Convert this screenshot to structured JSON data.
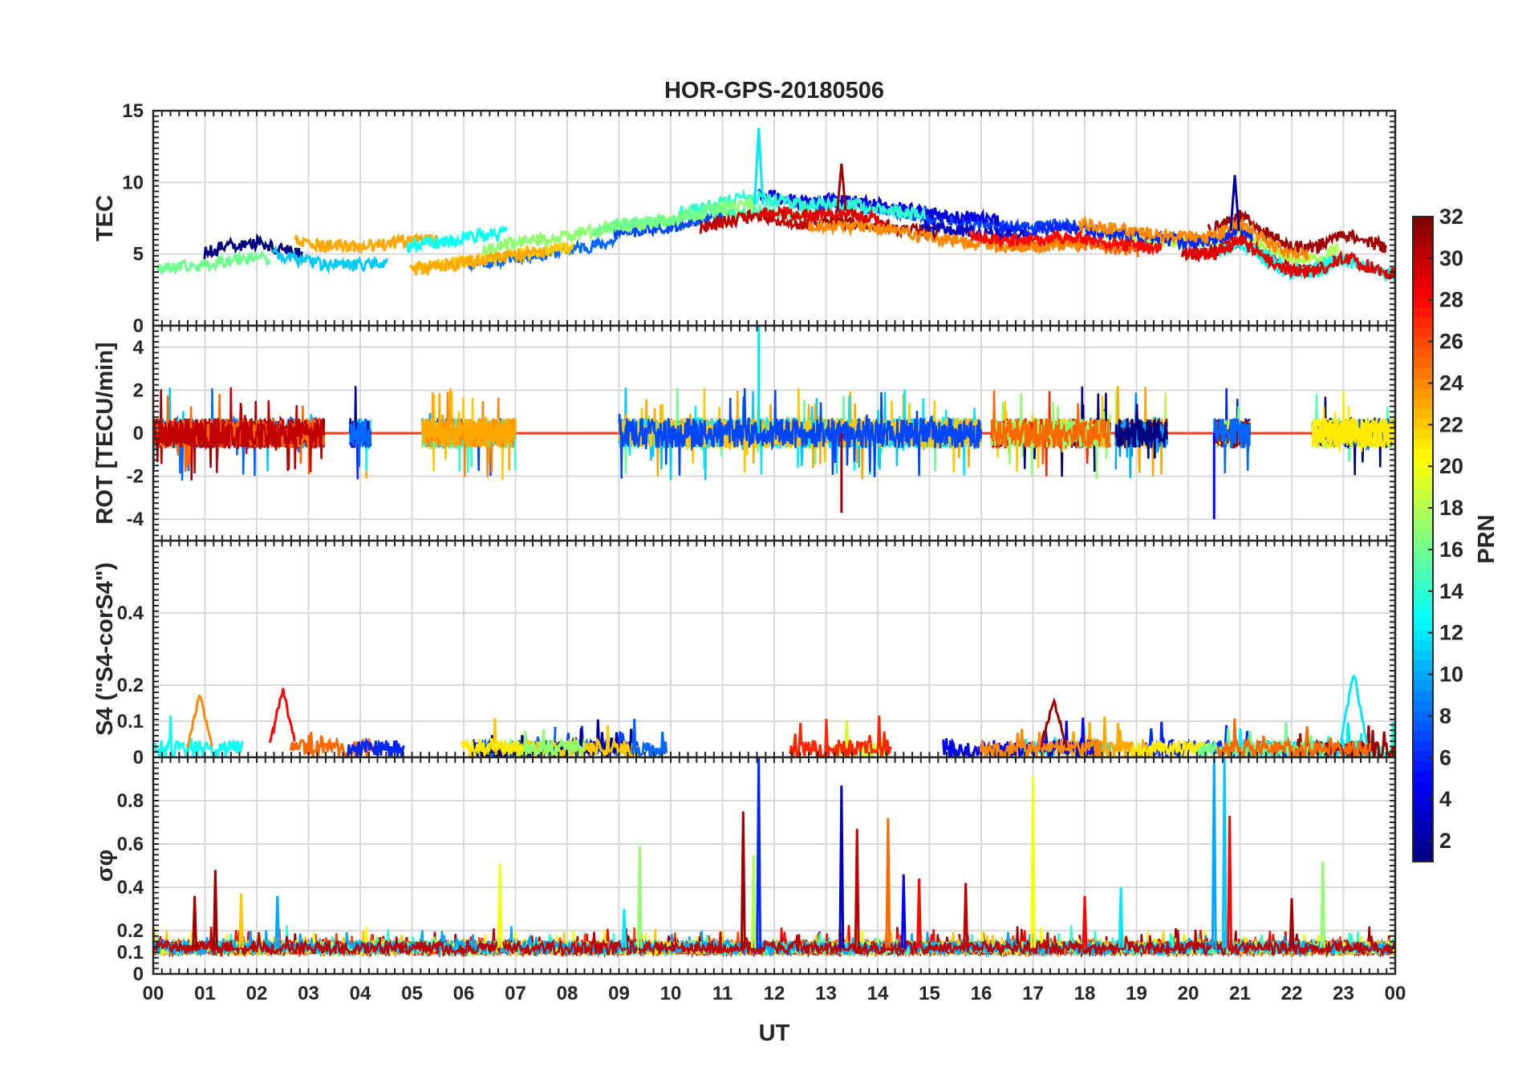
{
  "chart_data": {
    "type": "line",
    "title": "HOR-GPS-20180506",
    "xlabel": "UT",
    "x_ticks": [
      "00",
      "01",
      "02",
      "03",
      "04",
      "05",
      "06",
      "07",
      "08",
      "09",
      "10",
      "11",
      "12",
      "13",
      "14",
      "15",
      "16",
      "17",
      "18",
      "19",
      "20",
      "21",
      "22",
      "23",
      "00"
    ],
    "xlim_hours": [
      0,
      24
    ],
    "grid": true,
    "colorbar": {
      "label": "PRN",
      "range": [
        1,
        32
      ],
      "ticks": [
        "2",
        "4",
        "6",
        "8",
        "10",
        "12",
        "14",
        "16",
        "18",
        "20",
        "22",
        "24",
        "26",
        "28",
        "30",
        "32"
      ],
      "tick_values": [
        2,
        4,
        6,
        8,
        10,
        12,
        14,
        16,
        18,
        20,
        22,
        24,
        26,
        28,
        30,
        32
      ],
      "colormap": [
        "#00007f",
        "#0000ff",
        "#007fff",
        "#00ffff",
        "#7fff7f",
        "#ffff00",
        "#ff7f00",
        "#ff0000",
        "#7f0000"
      ]
    },
    "panels": [
      {
        "id": "tec",
        "ylabel": "TEC",
        "ylim": [
          0,
          15
        ],
        "yticks": [
          "0",
          "5",
          "10",
          "15"
        ],
        "ytick_values": [
          0,
          5,
          10,
          15
        ],
        "envelope": {
          "x": [
            0,
            0.5,
            1,
            1.5,
            2,
            2.5,
            3,
            3.5,
            4,
            4.5,
            5,
            5.5,
            6,
            6.5,
            7,
            7.5,
            8,
            8.5,
            9,
            9.5,
            10,
            10.5,
            11,
            11.5,
            12,
            12.5,
            13,
            13.5,
            14,
            14.5,
            15,
            15.5,
            16,
            16.5,
            17,
            17.5,
            18,
            18.5,
            19,
            19.5,
            20,
            20.5,
            21,
            21.5,
            22,
            22.5,
            23,
            23.5,
            24
          ],
          "y": [
            4.6,
            4.7,
            4.9,
            5.3,
            5.5,
            5.0,
            4.6,
            4.4,
            4.4,
            4.5,
            4.8,
            5.0,
            5.3,
            5.5,
            5.8,
            6.0,
            6.3,
            6.6,
            7.0,
            7.2,
            7.3,
            7.8,
            8.2,
            8.5,
            8.3,
            8.0,
            8.1,
            8.0,
            7.8,
            7.5,
            7.2,
            7.0,
            6.8,
            6.6,
            6.6,
            6.8,
            6.7,
            6.4,
            6.2,
            6.0,
            5.8,
            5.9,
            6.8,
            5.6,
            4.6,
            4.7,
            5.6,
            5.0,
            4.4
          ]
        },
        "peaks": [
          {
            "ut": 11.7,
            "value": 13.8,
            "prn": 12
          },
          {
            "ut": 13.3,
            "value": 11.3,
            "prn": 31
          },
          {
            "ut": 20.9,
            "value": 10.5,
            "prn": 2
          }
        ]
      },
      {
        "id": "rot",
        "ylabel": "ROT [TECU/min]",
        "ylim": [
          -5,
          5
        ],
        "yticks": [
          "-4",
          "-2",
          "0",
          "2",
          "4"
        ],
        "ytick_values": [
          -4,
          -2,
          0,
          2,
          4
        ],
        "activity_ut": [
          [
            0,
            3.3
          ],
          [
            3.8,
            4.2
          ],
          [
            5.2,
            7.0
          ],
          [
            9.0,
            16.0
          ],
          [
            16.2,
            18.5
          ],
          [
            18.6,
            19.6
          ],
          [
            20.5,
            21.2
          ],
          [
            22.4,
            24
          ]
        ],
        "peaks": [
          {
            "ut": 11.7,
            "value": 5.0,
            "prn": 12
          },
          {
            "ut": 13.3,
            "value": -3.7,
            "prn": 31
          },
          {
            "ut": 20.5,
            "value": -4.0,
            "prn": 5
          }
        ]
      },
      {
        "id": "s4",
        "ylabel": "S4 (\"S4-corS4\")",
        "ylim": [
          0,
          0.6
        ],
        "yticks": [
          "0",
          "0.1",
          "0.2",
          "0.4"
        ],
        "ytick_values": [
          0,
          0.1,
          0.2,
          0.4
        ],
        "peaks": [
          {
            "ut": 0.9,
            "value": 0.17,
            "prn": 24
          },
          {
            "ut": 2.5,
            "value": 0.19,
            "prn": 28
          },
          {
            "ut": 23.2,
            "value": 0.24,
            "prn": 12
          },
          {
            "ut": 17.4,
            "value": 0.16,
            "prn": 31
          }
        ]
      },
      {
        "id": "sigma_phi",
        "ylabel": "σφ",
        "ylim": [
          0,
          1
        ],
        "yticks": [
          "0",
          "0.1",
          "0.2",
          "0.4",
          "0.6",
          "0.8"
        ],
        "ytick_values": [
          0,
          0.1,
          0.2,
          0.4,
          0.6,
          0.8
        ],
        "spikes": [
          {
            "ut": 0.8,
            "value": 0.36,
            "prn": 31
          },
          {
            "ut": 1.2,
            "value": 0.48,
            "prn": 31
          },
          {
            "ut": 1.7,
            "value": 0.37,
            "prn": 22
          },
          {
            "ut": 2.4,
            "value": 0.36,
            "prn": 10
          },
          {
            "ut": 6.7,
            "value": 0.51,
            "prn": 20
          },
          {
            "ut": 9.1,
            "value": 0.3,
            "prn": 12
          },
          {
            "ut": 9.4,
            "value": 0.59,
            "prn": 17
          },
          {
            "ut": 11.4,
            "value": 0.75,
            "prn": 31
          },
          {
            "ut": 11.7,
            "value": 1.0,
            "prn": 6
          },
          {
            "ut": 11.6,
            "value": 0.55,
            "prn": 18
          },
          {
            "ut": 13.3,
            "value": 0.87,
            "prn": 3
          },
          {
            "ut": 13.6,
            "value": 0.67,
            "prn": 30
          },
          {
            "ut": 14.2,
            "value": 0.72,
            "prn": 25
          },
          {
            "ut": 14.5,
            "value": 0.46,
            "prn": 5
          },
          {
            "ut": 14.8,
            "value": 0.44,
            "prn": 28
          },
          {
            "ut": 15.7,
            "value": 0.42,
            "prn": 30
          },
          {
            "ut": 17.0,
            "value": 0.91,
            "prn": 20
          },
          {
            "ut": 18.0,
            "value": 0.36,
            "prn": 28
          },
          {
            "ut": 18.7,
            "value": 0.4,
            "prn": 12
          },
          {
            "ut": 20.5,
            "value": 1.0,
            "prn": 10
          },
          {
            "ut": 20.7,
            "value": 1.0,
            "prn": 11
          },
          {
            "ut": 20.8,
            "value": 0.73,
            "prn": 28
          },
          {
            "ut": 22.0,
            "value": 0.35,
            "prn": 31
          },
          {
            "ut": 22.6,
            "value": 0.52,
            "prn": 17
          }
        ]
      }
    ]
  }
}
